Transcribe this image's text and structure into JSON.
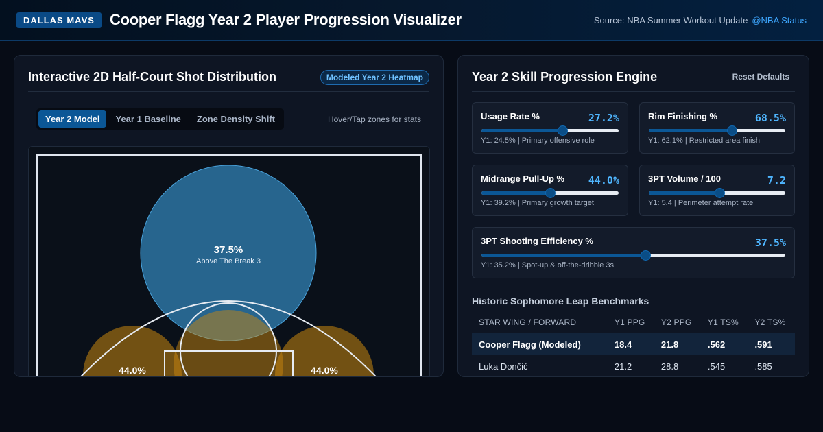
{
  "header": {
    "brand": "DALLAS MAVS",
    "title": "Cooper Flagg Year 2 Player Progression Visualizer",
    "source_label": "Source: NBA Summer Workout Update",
    "source_link": "@NBA Status"
  },
  "left_panel": {
    "title": "Interactive 2D Half-Court Shot Distribution",
    "badge": "Modeled Year 2 Heatmap",
    "tabs": [
      {
        "label": "Year 2 Model",
        "active": true
      },
      {
        "label": "Year 1 Baseline",
        "active": false
      },
      {
        "label": "Zone Density Shift",
        "active": false
      }
    ],
    "hint": "Hover/Tap zones for stats",
    "zones": [
      {
        "pct": "37.5%",
        "label": "Above The Break 3",
        "color": "#3a9ad6"
      },
      {
        "pct": "44.0%",
        "label": "",
        "color": "#c8860f"
      },
      {
        "pct": "44.0%",
        "label": "",
        "color": "#c8860f"
      }
    ]
  },
  "right_panel": {
    "title": "Year 2 Skill Progression Engine",
    "reset_label": "Reset Defaults",
    "skills": [
      {
        "name": "Usage Rate %",
        "value": "27.2%",
        "level": 0.59,
        "note": "Y1: 24.5% | Primary offensive role"
      },
      {
        "name": "Rim Finishing %",
        "value": "68.5%",
        "level": 0.61,
        "note": "Y1: 62.1% | Restricted area finish"
      },
      {
        "name": "Midrange Pull-Up %",
        "value": "44.0%",
        "level": 0.5,
        "note": "Y1: 39.2% | Primary growth target"
      },
      {
        "name": "3PT Volume / 100",
        "value": "7.2",
        "level": 0.52,
        "note": "Y1: 5.4 | Perimeter attempt rate"
      },
      {
        "name": "3PT Shooting Efficiency %",
        "value": "37.5%",
        "level": 0.54,
        "note": "Y1: 35.2% | Spot-up & off-the-dribble 3s"
      }
    ],
    "benchmarks": {
      "title": "Historic Sophomore Leap Benchmarks",
      "columns": [
        "STAR WING / FORWARD",
        "Y1 PPG",
        "Y2 PPG",
        "Y1 TS%",
        "Y2 TS%"
      ],
      "rows": [
        {
          "cells": [
            "Cooper Flagg (Modeled)",
            "18.4",
            "21.8",
            ".562",
            ".591"
          ],
          "highlight": true
        },
        {
          "cells": [
            "Luka Dončić",
            "21.2",
            "28.8",
            ".545",
            ".585"
          ],
          "highlight": false
        }
      ]
    }
  },
  "colors": {
    "accent": "#0b5796",
    "value": "#4fb6ff",
    "three_zone": "#3a9ad6",
    "mid_zone": "#c8860f"
  }
}
